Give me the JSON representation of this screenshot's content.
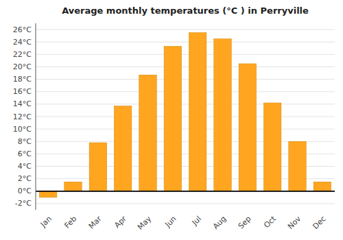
{
  "chart_data": {
    "type": "bar",
    "title": "Average monthly temperatures (°C ) in Perryville",
    "categories": [
      "Jan",
      "Feb",
      "Mar",
      "Apr",
      "May",
      "Jun",
      "Jul",
      "Aug",
      "Sep",
      "Oct",
      "Nov",
      "Dec"
    ],
    "values": [
      -1.0,
      1.5,
      7.8,
      13.7,
      18.7,
      23.3,
      25.5,
      24.5,
      20.5,
      14.2,
      8.0,
      1.5
    ],
    "color": "#FFA520",
    "ylim": [
      -3.0,
      27.0
    ],
    "yticks": [
      {
        "value": -2,
        "label": "-2°C"
      },
      {
        "value": 0,
        "label": "0°C"
      },
      {
        "value": 2,
        "label": "2°C"
      },
      {
        "value": 4,
        "label": "4°C"
      },
      {
        "value": 6,
        "label": "6°C"
      },
      {
        "value": 8,
        "label": "8°C"
      },
      {
        "value": 10,
        "label": "10°C"
      },
      {
        "value": 12,
        "label": "12°C"
      },
      {
        "value": 14,
        "label": "14°C"
      },
      {
        "value": 16,
        "label": "16°C"
      },
      {
        "value": 18,
        "label": "18°C"
      },
      {
        "value": 20,
        "label": "20°C"
      },
      {
        "value": 22,
        "label": "22°C"
      },
      {
        "value": 24,
        "label": "24°C"
      },
      {
        "value": 26,
        "label": "26°C"
      }
    ],
    "grid": true
  }
}
